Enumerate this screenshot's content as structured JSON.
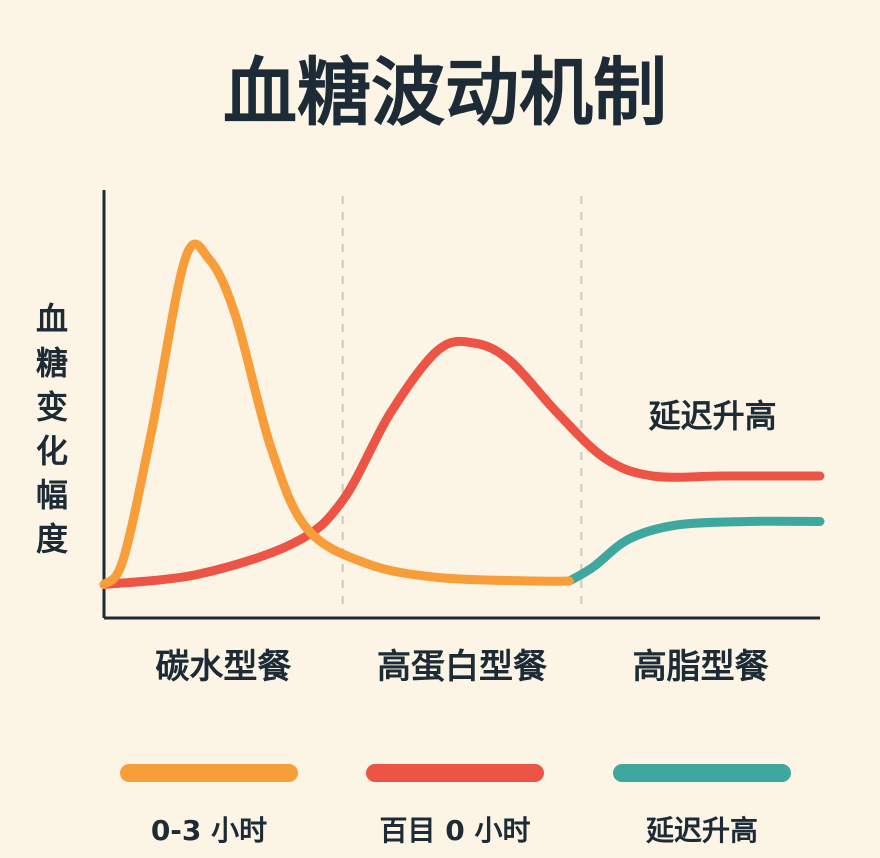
{
  "chart_data": {
    "type": "line",
    "title": "血糖波动机制",
    "ylabel": "血糖变化幅度",
    "xlabel": "",
    "categories": [
      "碳水型餐",
      "高蛋白型餐",
      "高脂型餐"
    ],
    "xlim": [
      0,
      3
    ],
    "ylim": [
      0,
      100
    ],
    "grid": false,
    "annotation": {
      "text": "延迟升高",
      "x": 2.55,
      "y": 46
    },
    "series": [
      {
        "color": "#f79d3a",
        "points": [
          [
            0.0,
            1
          ],
          [
            0.08,
            8
          ],
          [
            0.2,
            45
          ],
          [
            0.34,
            94
          ],
          [
            0.44,
            94
          ],
          [
            0.55,
            78
          ],
          [
            0.7,
            40
          ],
          [
            0.85,
            17
          ],
          [
            1.1,
            7
          ],
          [
            1.4,
            3
          ],
          [
            1.8,
            2
          ],
          [
            1.95,
            2
          ]
        ]
      },
      {
        "color": "#ec5446",
        "points": [
          [
            0.0,
            1
          ],
          [
            0.4,
            4
          ],
          [
            0.8,
            13
          ],
          [
            1.0,
            25
          ],
          [
            1.2,
            50
          ],
          [
            1.4,
            68
          ],
          [
            1.55,
            70
          ],
          [
            1.7,
            65
          ],
          [
            1.9,
            50
          ],
          [
            2.1,
            37
          ],
          [
            2.3,
            32
          ],
          [
            2.6,
            32
          ],
          [
            3.0,
            32
          ]
        ]
      },
      {
        "color": "#3ea89e",
        "points": [
          [
            1.95,
            2
          ],
          [
            2.05,
            6
          ],
          [
            2.2,
            14
          ],
          [
            2.4,
            18
          ],
          [
            2.7,
            19
          ],
          [
            3.0,
            19
          ]
        ]
      }
    ],
    "legend": {
      "placement": "bottom",
      "entries": [
        {
          "label": "0-3 小时",
          "color": "#f79d3a"
        },
        {
          "label": "百目 0 小时",
          "color": "#ec5446"
        },
        {
          "label": "延迟升高",
          "color": "#3ea89e"
        }
      ]
    }
  }
}
